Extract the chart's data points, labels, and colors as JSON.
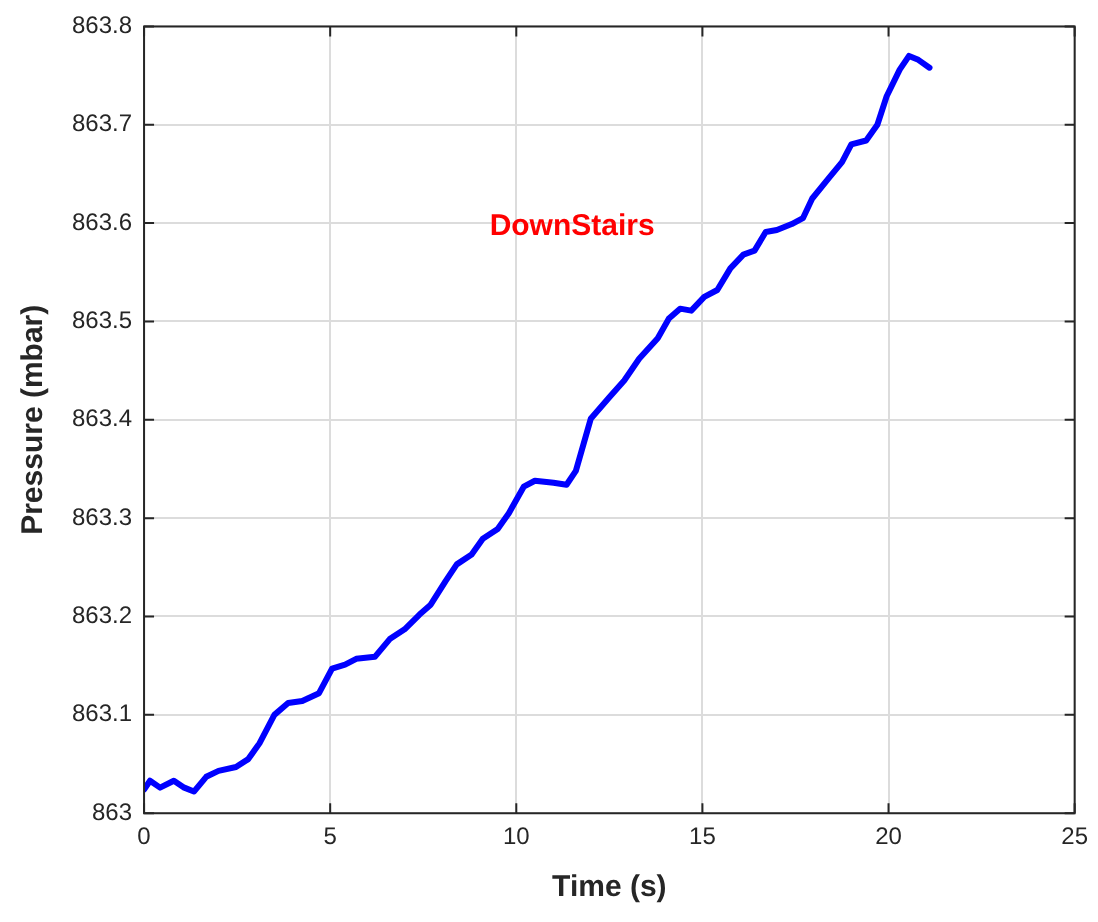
{
  "chart_data": {
    "type": "line",
    "xlabel": "Time (s)",
    "ylabel": "Pressure (mbar)",
    "annotations": [
      "DownStairs"
    ],
    "xlim": [
      0,
      25
    ],
    "xticks": [
      0,
      5,
      10,
      15,
      20,
      25
    ],
    "ylim": [
      863,
      863.8
    ],
    "yticks": [
      863,
      863.1,
      863.2,
      863.3,
      863.4,
      863.5,
      863.6,
      863.7,
      863.8
    ],
    "grid": true,
    "marker": "none",
    "line_style": "solid",
    "series": [
      {
        "color": "#0000ff",
        "x": [
          0,
          0.16,
          0.43,
          0.8,
          1.08,
          1.34,
          1.67,
          2.0,
          2.47,
          2.8,
          3.1,
          3.5,
          3.87,
          4.25,
          4.7,
          5.05,
          5.4,
          5.7,
          6.2,
          6.6,
          7.0,
          7.4,
          7.7,
          8.1,
          8.4,
          8.8,
          9.1,
          9.5,
          9.8,
          10.2,
          10.5,
          11.0,
          11.35,
          11.6,
          12.0,
          12.5,
          12.9,
          13.3,
          13.8,
          14.1,
          14.4,
          14.7,
          15.05,
          15.4,
          15.75,
          16.1,
          16.4,
          16.7,
          17.0,
          17.4,
          17.7,
          17.95,
          18.4,
          18.75,
          19.0,
          19.4,
          19.7,
          19.95,
          20.3,
          20.55,
          20.8,
          21.1
        ],
        "values": [
          863.024,
          863.033,
          863.026,
          863.033,
          863.026,
          863.022,
          863.037,
          863.043,
          863.047,
          863.055,
          863.071,
          863.1,
          863.112,
          863.114,
          863.122,
          863.147,
          863.151,
          863.157,
          863.159,
          863.177,
          863.187,
          863.202,
          863.212,
          863.236,
          863.253,
          863.263,
          863.279,
          863.289,
          863.305,
          863.332,
          863.338,
          863.336,
          863.334,
          863.348,
          863.401,
          863.423,
          863.44,
          863.462,
          863.483,
          863.503,
          863.513,
          863.511,
          863.525,
          863.532,
          863.554,
          863.568,
          863.572,
          863.591,
          863.593,
          863.599,
          863.605,
          863.625,
          863.646,
          863.662,
          863.68,
          863.684,
          863.7,
          863.729,
          863.756,
          863.77,
          863.766,
          863.758
        ]
      }
    ]
  }
}
